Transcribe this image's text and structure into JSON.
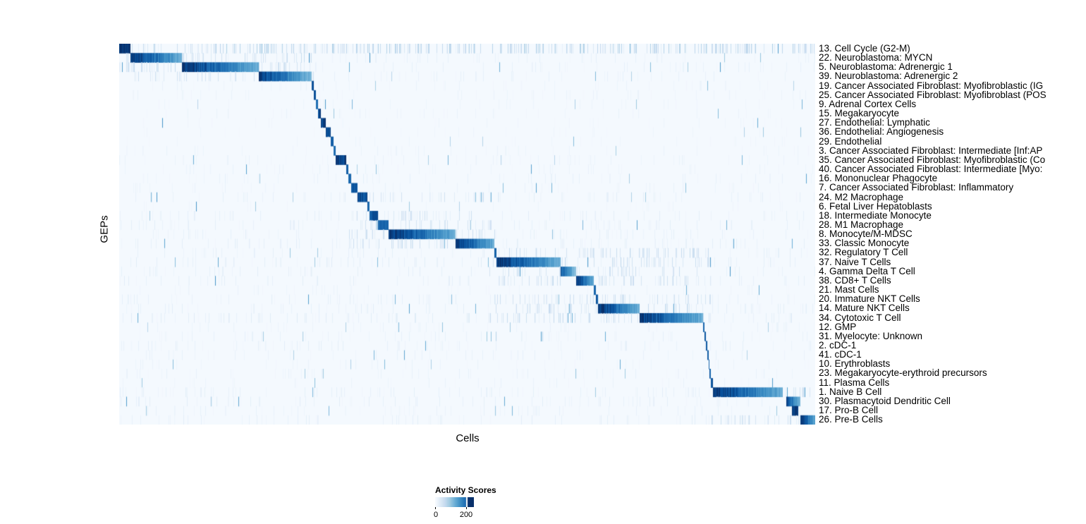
{
  "axes": {
    "x_label": "Cells",
    "y_label": "GEPs"
  },
  "chart_data": {
    "type": "heatmap",
    "title": "",
    "xlabel": "Cells",
    "ylabel": "GEPs",
    "grid": false,
    "legend_position": "bottom",
    "colorbar": {
      "title": "Activity Scores",
      "min": 0,
      "max": 200,
      "min_label": "0",
      "max_label": "200",
      "low_color": "#f7fbff",
      "mid_color": "#6baed6",
      "high_color": "#08306b"
    },
    "description": "Cells (columns) ordered by dominant GEP; diagonal blocks of high activity scores per GEP row; block = [fractional column start, end] of high-activity region, intensity = relative darkness 0-1, noise = background streak level",
    "rows": [
      {
        "label": "13. Cell Cycle (G2-M)",
        "block": [
          0.0,
          0.016
        ],
        "intensity": 1.0,
        "noise": 0.9
      },
      {
        "label": "22. Neuroblastoma: MYCN",
        "block": [
          0.016,
          0.09
        ],
        "intensity": 1.0,
        "noise": 0.2,
        "noise_region": [
          0.0,
          0.28,
          0.5
        ]
      },
      {
        "label": "5. Neuroblastoma: Adrenergic 1",
        "block": [
          0.09,
          0.2
        ],
        "intensity": 1.0,
        "noise": 0.2,
        "noise_region": [
          0.0,
          0.28,
          0.5
        ]
      },
      {
        "label": "39. Neuroblastoma: Adrenergic 2",
        "block": [
          0.2,
          0.276
        ],
        "intensity": 0.95,
        "noise": 0.2,
        "noise_region": [
          0.0,
          0.28,
          0.4
        ]
      },
      {
        "label": "19. Cancer Associated Fibroblast: Myofibroblastic (IG",
        "block": [
          0.276,
          0.279
        ],
        "intensity": 0.9,
        "noise": 0.15
      },
      {
        "label": "25. Cancer Associated Fibroblast: Myofibroblast (POS",
        "block": [
          0.279,
          0.282
        ],
        "intensity": 0.85,
        "noise": 0.15
      },
      {
        "label": "9. Adrenal Cortex Cells",
        "block": [
          0.282,
          0.285
        ],
        "intensity": 0.8,
        "noise": 0.1
      },
      {
        "label": "15. Megakaryocyte",
        "block": [
          0.285,
          0.289
        ],
        "intensity": 0.9,
        "noise": 0.15
      },
      {
        "label": "27. Endothelial: Lymphatic",
        "block": [
          0.289,
          0.296
        ],
        "intensity": 0.9,
        "noise": 0.1
      },
      {
        "label": "36. Endothelial: Angiogenesis",
        "block": [
          0.296,
          0.303
        ],
        "intensity": 0.9,
        "noise": 0.1
      },
      {
        "label": "29. Endothelial",
        "block": [
          0.303,
          0.308
        ],
        "intensity": 0.9,
        "noise": 0.1
      },
      {
        "label": "3. Cancer Associated Fibroblast: Intermediate [Inf:AP",
        "block": [
          0.308,
          0.311
        ],
        "intensity": 0.8,
        "noise": 0.15
      },
      {
        "label": "35. Cancer Associated Fibroblast: Myofibroblastic (Co",
        "block": [
          0.311,
          0.326
        ],
        "intensity": 0.95,
        "noise": 0.15
      },
      {
        "label": "40. Cancer Associated Fibroblast: Intermediate [Myo:",
        "block": [
          0.326,
          0.329
        ],
        "intensity": 0.8,
        "noise": 0.15
      },
      {
        "label": "16. Mononuclear Phagocyte",
        "block": [
          0.329,
          0.333
        ],
        "intensity": 0.8,
        "noise": 0.2
      },
      {
        "label": "7. Cancer Associated Fibroblast: Inflammatory",
        "block": [
          0.333,
          0.342
        ],
        "intensity": 0.85,
        "noise": 0.15
      },
      {
        "label": "24. M2 Macrophage",
        "block": [
          0.342,
          0.356
        ],
        "intensity": 0.9,
        "noise": 0.25,
        "noise_region": [
          0.33,
          0.54,
          0.3
        ]
      },
      {
        "label": "6. Fetal Liver Hepatoblasts",
        "block": [
          0.356,
          0.359
        ],
        "intensity": 0.8,
        "noise": 0.1
      },
      {
        "label": "18. Intermediate Monocyte",
        "block": [
          0.359,
          0.371
        ],
        "intensity": 0.85,
        "noise": 0.25,
        "noise_region": [
          0.33,
          0.54,
          0.3
        ]
      },
      {
        "label": "28. M1 Macrophage",
        "block": [
          0.371,
          0.387
        ],
        "intensity": 0.8,
        "noise": 0.25,
        "noise_region": [
          0.33,
          0.54,
          0.3
        ]
      },
      {
        "label": "8. Monocyte/M-MDSC",
        "block": [
          0.387,
          0.483
        ],
        "intensity": 1.0,
        "noise": 0.25,
        "noise_region": [
          0.33,
          0.54,
          0.4
        ]
      },
      {
        "label": "33. Classic Monocyte",
        "block": [
          0.483,
          0.538
        ],
        "intensity": 1.0,
        "noise": 0.25,
        "noise_region": [
          0.33,
          0.54,
          0.4
        ]
      },
      {
        "label": "32. Regulatory T Cell",
        "block": [
          0.538,
          0.542
        ],
        "intensity": 0.85,
        "noise": 0.25,
        "noise_region": [
          0.53,
          0.85,
          0.45
        ]
      },
      {
        "label": "37. Naive T Cells",
        "block": [
          0.542,
          0.634
        ],
        "intensity": 1.0,
        "noise": 0.3,
        "noise_region": [
          0.53,
          0.85,
          0.45
        ]
      },
      {
        "label": "4. Gamma Delta T Cell",
        "block": [
          0.634,
          0.656
        ],
        "intensity": 0.85,
        "noise": 0.25,
        "noise_region": [
          0.53,
          0.85,
          0.45
        ]
      },
      {
        "label": "38. CD8+ T Cells",
        "block": [
          0.656,
          0.681
        ],
        "intensity": 1.0,
        "noise": 0.25,
        "noise_region": [
          0.53,
          0.85,
          0.45
        ]
      },
      {
        "label": "21. Mast Cells",
        "block": [
          0.681,
          0.684
        ],
        "intensity": 0.85,
        "noise": 0.15
      },
      {
        "label": "20. Immature NKT Cells",
        "block": [
          0.684,
          0.687
        ],
        "intensity": 0.85,
        "noise": 0.25,
        "noise_region": [
          0.53,
          0.85,
          0.4
        ]
      },
      {
        "label": "14. Mature NKT Cells",
        "block": [
          0.687,
          0.747
        ],
        "intensity": 1.0,
        "noise": 0.25,
        "noise_region": [
          0.53,
          0.85,
          0.45
        ]
      },
      {
        "label": "34. Cytotoxic T Cell",
        "block": [
          0.747,
          0.838
        ],
        "intensity": 1.0,
        "noise": 0.3,
        "noise_region": [
          0.53,
          0.85,
          0.45
        ]
      },
      {
        "label": "12. GMP",
        "block": [
          0.838,
          0.84
        ],
        "intensity": 0.8,
        "noise": 0.15
      },
      {
        "label": "31. Myelocyte: Unknown",
        "block": [
          0.84,
          0.842
        ],
        "intensity": 0.8,
        "noise": 0.2
      },
      {
        "label": "2. cDC-1",
        "block": [
          0.842,
          0.844
        ],
        "intensity": 0.8,
        "noise": 0.25
      },
      {
        "label": "41. cDC-1",
        "block": [
          0.844,
          0.846
        ],
        "intensity": 0.8,
        "noise": 0.2
      },
      {
        "label": "10. Erythroblasts",
        "block": [
          0.846,
          0.848
        ],
        "intensity": 0.85,
        "noise": 0.15
      },
      {
        "label": "23. Megakaryocyte-erythroid precursors",
        "block": [
          0.848,
          0.85
        ],
        "intensity": 0.8,
        "noise": 0.2
      },
      {
        "label": "11. Plasma Cells",
        "block": [
          0.85,
          0.853
        ],
        "intensity": 0.85,
        "noise": 0.15
      },
      {
        "label": "1. Naive B Cell",
        "block": [
          0.853,
          0.953
        ],
        "intensity": 1.0,
        "noise": 0.25,
        "noise_region": [
          0.85,
          1.0,
          0.4
        ]
      },
      {
        "label": "30. Plasmacytoid Dendritic Cell",
        "block": [
          0.958,
          0.978
        ],
        "intensity": 0.9,
        "noise": 0.25
      },
      {
        "label": "17. Pro-B Cell",
        "block": [
          0.966,
          0.975
        ],
        "intensity": 0.95,
        "noise": 0.2
      },
      {
        "label": "26. Pre-B Cells",
        "block": [
          0.978,
          1.0
        ],
        "intensity": 1.0,
        "noise": 0.25,
        "noise_region": [
          0.85,
          1.0,
          0.4
        ]
      }
    ]
  }
}
